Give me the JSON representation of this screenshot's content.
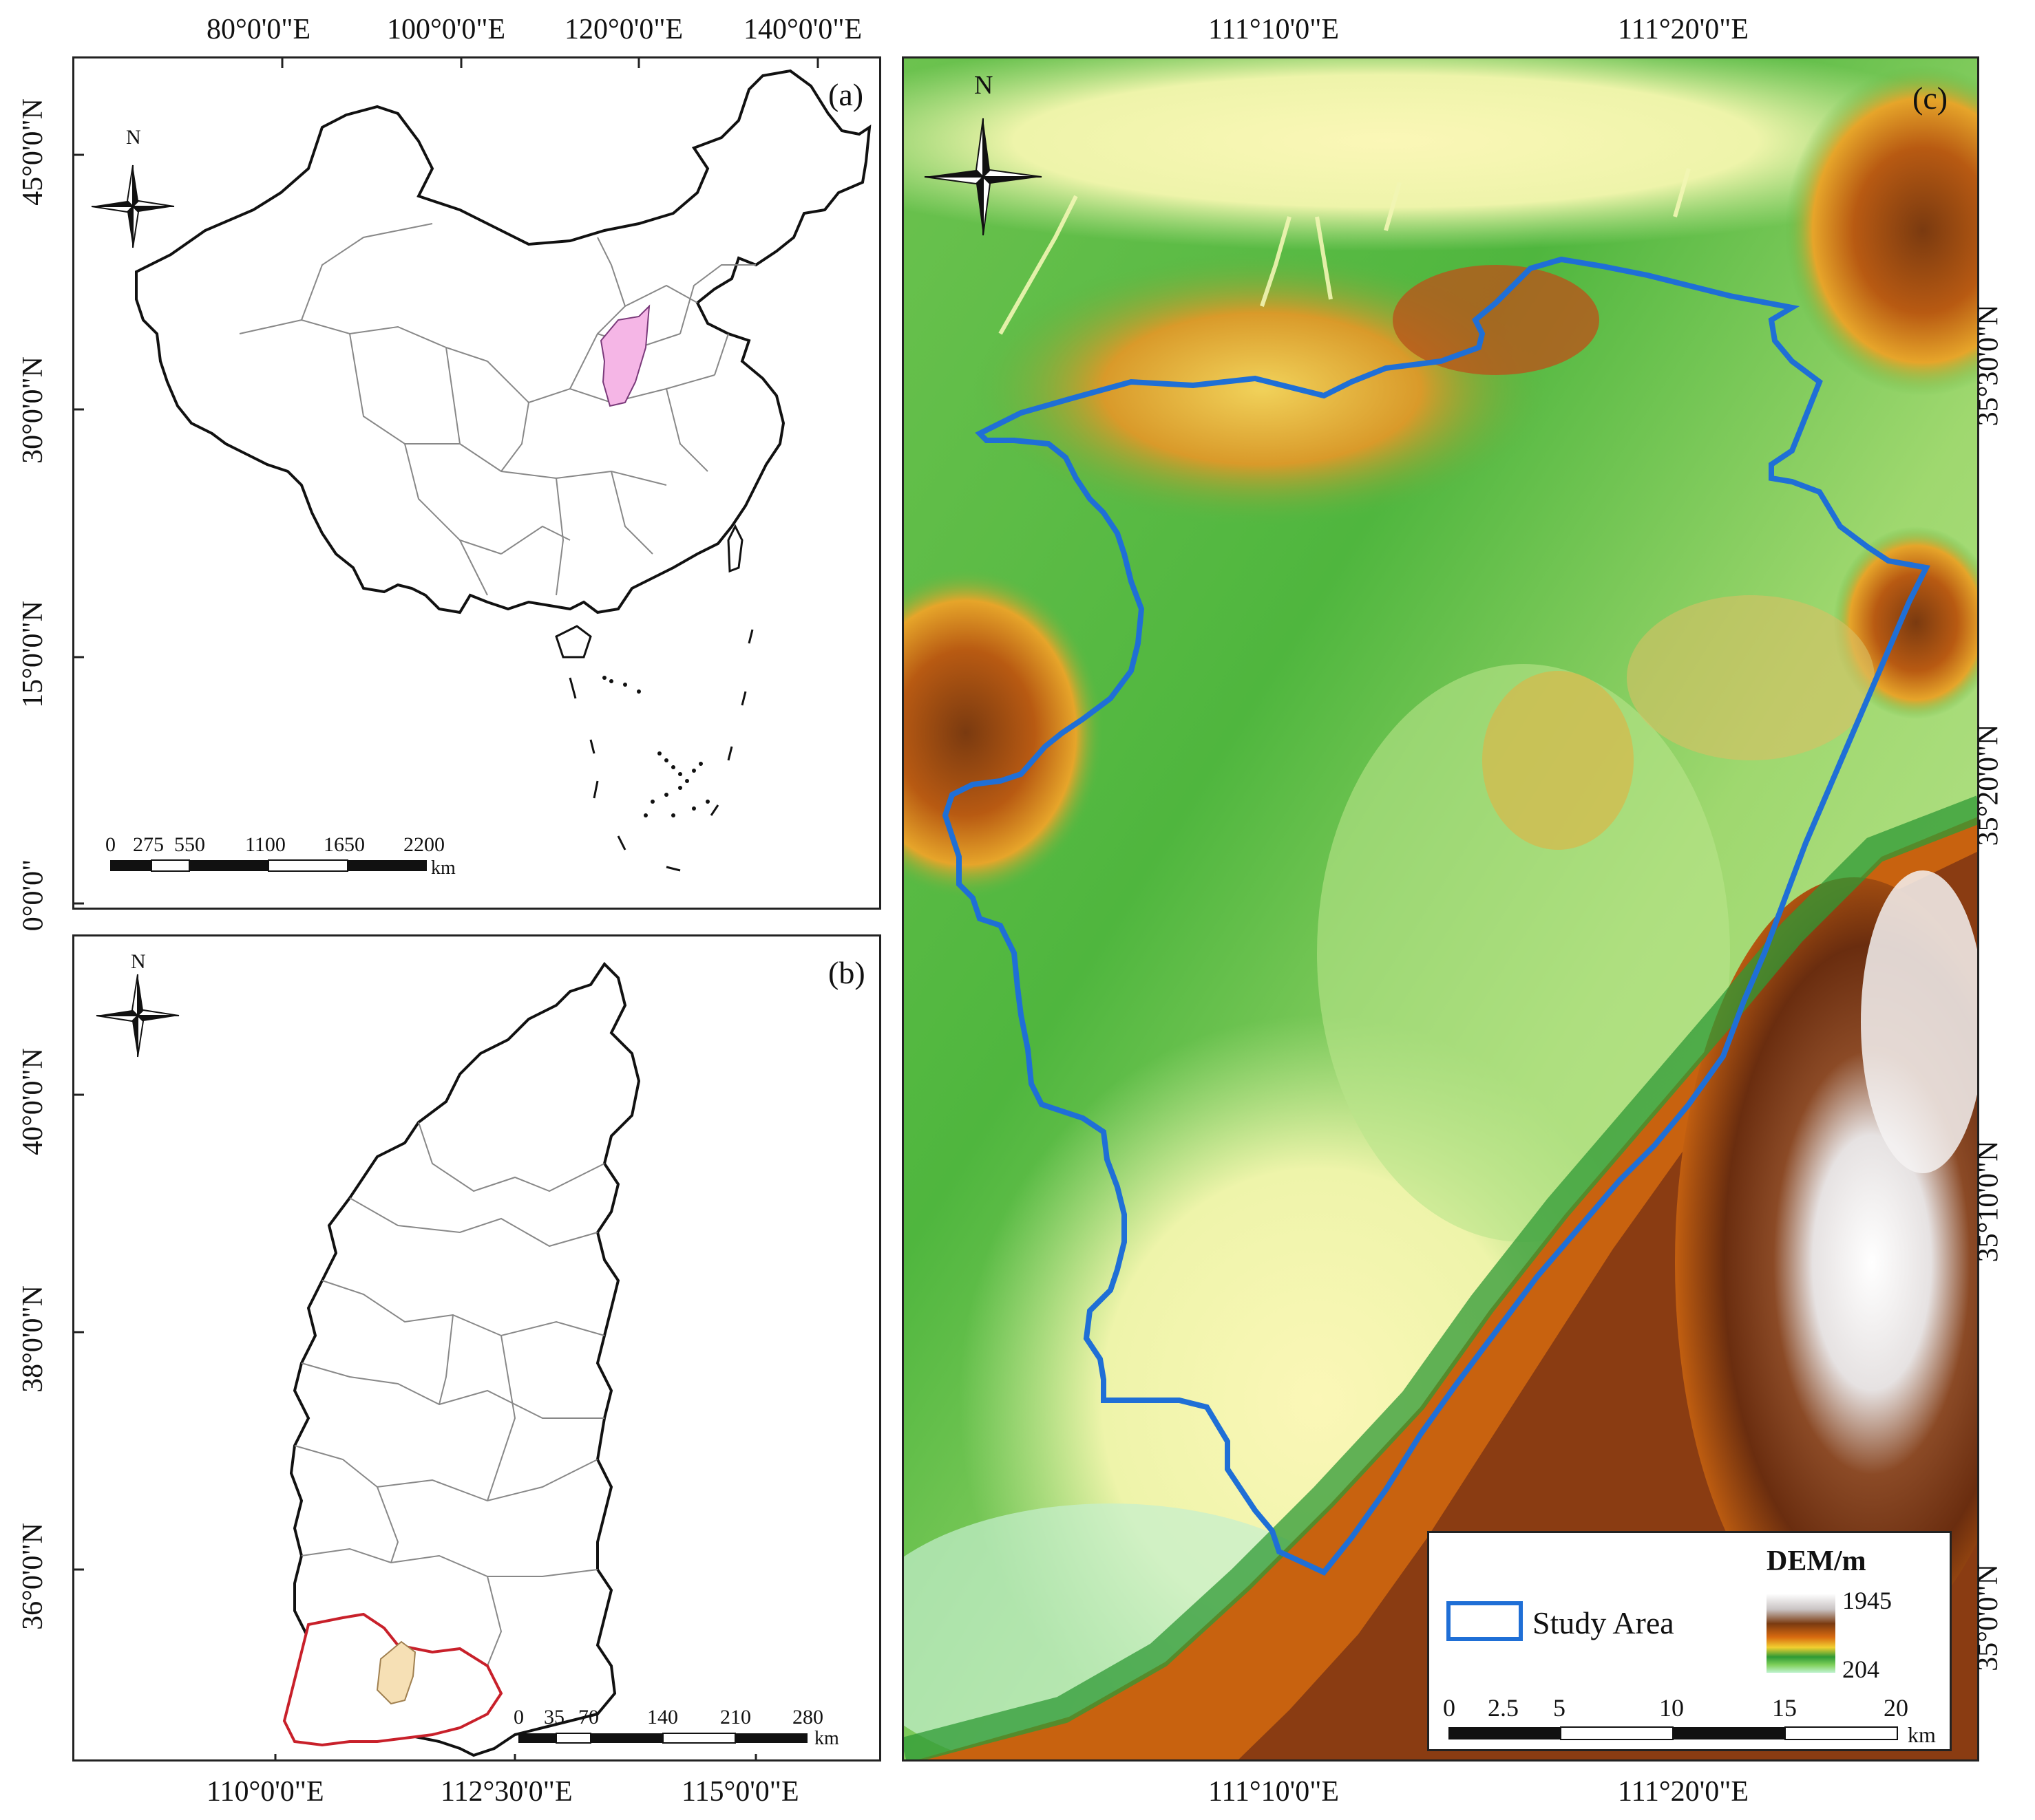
{
  "panels": {
    "a": {
      "letter": "(a)",
      "top_lon_labels": [
        "80°0'0\"E",
        "100°0'0\"E",
        "120°0'0\"E",
        "140°0'0\"E"
      ],
      "left_lat_labels": [
        "45°0'0\"N",
        "30°0'0\"N",
        "15°0'0\"N",
        "0°0'0\""
      ],
      "north": "N",
      "scale": {
        "ticks": [
          "0",
          "275",
          "550",
          "1100",
          "1650",
          "2200"
        ],
        "unit": "km"
      },
      "highlight_color": "#f5b6e6"
    },
    "b": {
      "letter": "(b)",
      "bottom_lon_labels": [
        "110°0'0\"E",
        "112°30'0\"E",
        "115°0'0\"E"
      ],
      "left_lat_labels": [
        "40°0'0\"N",
        "38°0'0\"N",
        "36°0'0\"N"
      ],
      "north": "N",
      "scale": {
        "ticks": [
          "0",
          "35",
          "70",
          "140",
          "210",
          "280"
        ],
        "unit": "km"
      },
      "highlight_color": "#f6e0b5",
      "region_outline_color": "#c8202a"
    },
    "c": {
      "letter": "(c)",
      "top_lon_labels": [
        "111°10'0\"E",
        "111°20'0\"E"
      ],
      "bottom_lon_labels": [
        "111°10'0\"E",
        "111°20'0\"E"
      ],
      "right_lat_labels": [
        "35°30'0\"N",
        "35°20'0\"N",
        "35°10'0\"N",
        "35°0'0\"N"
      ],
      "north": "N",
      "legend": {
        "study_area_label": "Study Area",
        "dem_title": "DEM/m",
        "dem_max": "1945",
        "dem_min": "204",
        "scale_ticks": [
          "0",
          "2.5",
          "5",
          "10",
          "15",
          "20"
        ],
        "scale_unit": "km"
      },
      "boundary_color": "#1f6fd6"
    }
  }
}
